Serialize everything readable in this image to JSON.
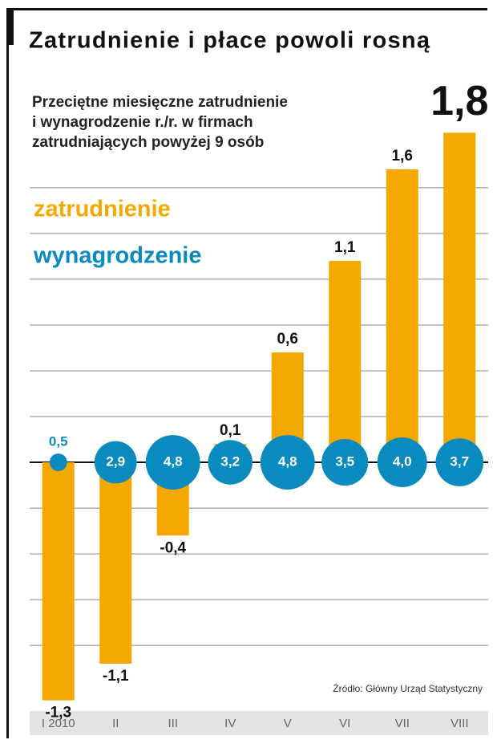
{
  "chart_data": {
    "type": "bar",
    "title": "Zatrudnienie i płace powoli rosną",
    "subtitle": [
      "Przeciętne miesięczne zatrudnienie",
      "i wynagrodzenie r./r. w firmach",
      "zatrudniających powyżej 9 osób"
    ],
    "source": "Źródło: Główny Urząd Statystyczny",
    "categories": [
      "I 2010",
      "II",
      "III",
      "IV",
      "V",
      "VI",
      "VII",
      "VIII"
    ],
    "series": [
      {
        "name": "zatrudnienie",
        "type": "bar",
        "color": "#f5a800",
        "values": [
          -1.3,
          -1.1,
          -0.4,
          0.1,
          0.6,
          1.1,
          1.6,
          1.8
        ],
        "value_labels": [
          "-1,3",
          "-1,1",
          "-0,4",
          "0,1",
          "0,6",
          "1,1",
          "1,6",
          "1,8"
        ]
      },
      {
        "name": "wynagrodzenie",
        "type": "bubble",
        "color": "#0a8bbf",
        "values": [
          0.5,
          2.9,
          4.8,
          3.2,
          4.8,
          3.5,
          4.0,
          3.7
        ],
        "value_labels": [
          "0,5",
          "2,9",
          "4,8",
          "3,2",
          "4,8",
          "3,5",
          "4,0",
          "3,7"
        ]
      }
    ],
    "ylim": [
      -1.35,
      1.85
    ],
    "yticks": [
      -1,
      -0.75,
      -0.5,
      -0.25,
      0,
      0.25,
      0.5,
      0.75,
      1,
      1.25,
      1.5
    ],
    "grid": true
  }
}
